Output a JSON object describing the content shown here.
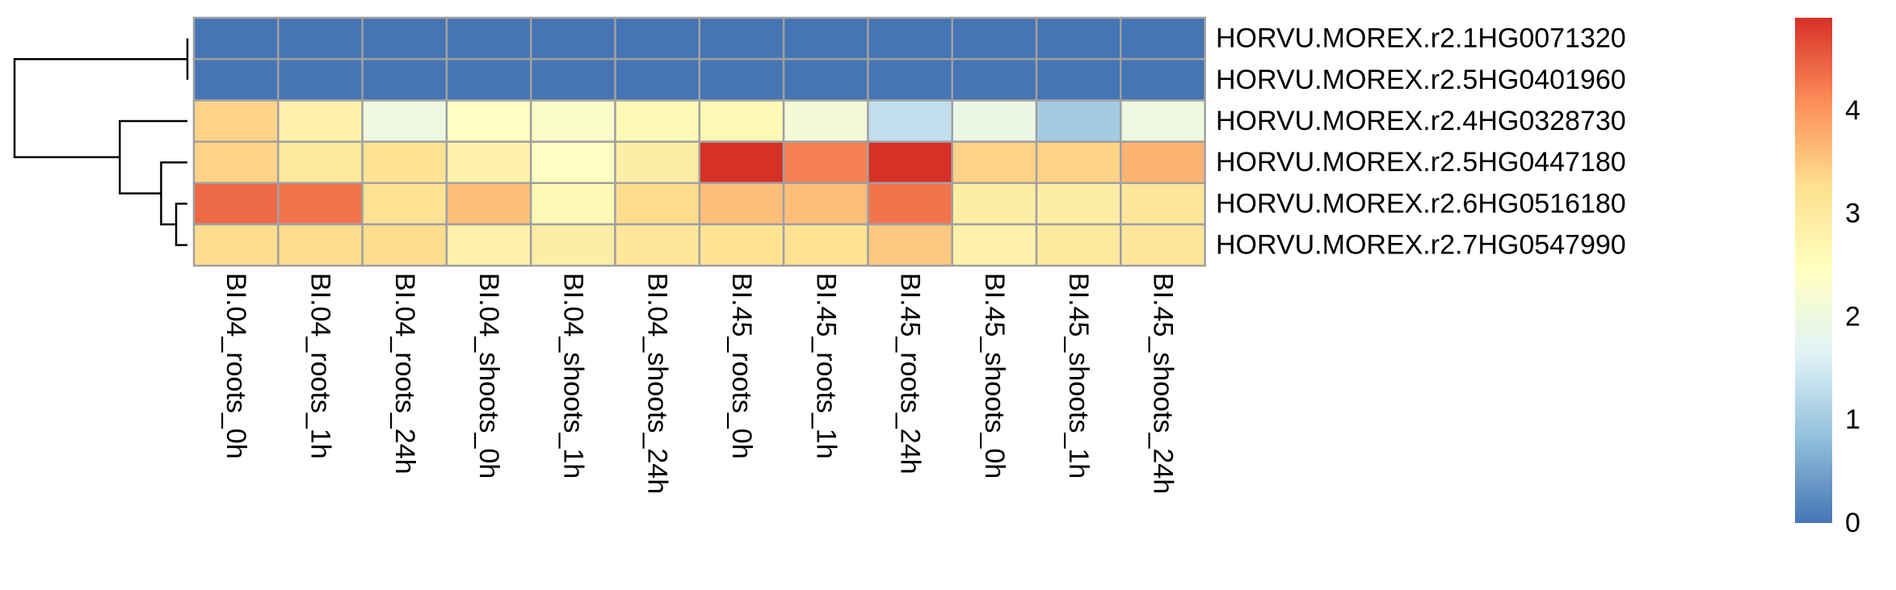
{
  "chart_data": {
    "type": "heatmap",
    "title": "",
    "xlabel": "",
    "ylabel": "",
    "rows": [
      "HORVU.MOREX.r2.1HG0071320",
      "HORVU.MOREX.r2.5HG0401960",
      "HORVU.MOREX.r2.4HG0328730",
      "HORVU.MOREX.r2.5HG0447180",
      "HORVU.MOREX.r2.6HG0516180",
      "HORVU.MOREX.r2.7HG0547990"
    ],
    "columns": [
      "BI.04_roots_0h",
      "BI.04_roots_1h",
      "BI.04_roots_24h",
      "BI.04_shoots_0h",
      "BI.04_shoots_1h",
      "BI.04_shoots_24h",
      "BI.45_roots_0h",
      "BI.45_roots_1h",
      "BI.45_roots_24h",
      "BI.45_shoots_0h",
      "BI.45_shoots_1h",
      "BI.45_shoots_24h"
    ],
    "values": [
      [
        0.0,
        0.0,
        0.0,
        0.0,
        0.0,
        0.0,
        0.0,
        0.0,
        0.0,
        0.0,
        0.0,
        0.0
      ],
      [
        0.0,
        0.0,
        0.0,
        0.0,
        0.0,
        0.0,
        0.0,
        0.0,
        0.0,
        0.0,
        0.0,
        0.0
      ],
      [
        3.4,
        2.8,
        2.0,
        2.4,
        2.3,
        2.6,
        2.6,
        2.1,
        1.3,
        1.9,
        1.0,
        2.0
      ],
      [
        3.4,
        3.0,
        3.2,
        2.8,
        2.4,
        2.9,
        4.9,
        4.2,
        4.9,
        3.4,
        3.4,
        3.7
      ],
      [
        4.4,
        4.3,
        3.2,
        3.6,
        2.6,
        3.3,
        3.6,
        3.6,
        4.3,
        2.9,
        2.9,
        3.1
      ],
      [
        3.3,
        3.3,
        3.3,
        2.8,
        2.9,
        3.1,
        3.2,
        3.2,
        3.5,
        2.8,
        3.0,
        3.1
      ]
    ],
    "value_range": [
      0,
      4.9
    ],
    "colorbar": {
      "ticks": [
        0,
        1,
        2,
        3,
        4
      ],
      "colors": [
        "#4575b4",
        "#91bfdb",
        "#e0f3f8",
        "#ffffbf",
        "#fee090",
        "#fc8d59",
        "#d73027"
      ]
    },
    "dendrogram": {
      "side": "left",
      "merges": [
        {
          "id": "m1",
          "children": [
            "r4",
            "r5"
          ],
          "height": 0.3
        },
        {
          "id": "m2",
          "children": [
            "r3",
            "m1"
          ],
          "height": 0.7
        },
        {
          "id": "m3",
          "children": [
            "r2",
            "m2"
          ],
          "height": 1.8
        },
        {
          "id": "m4",
          "children": [
            "r0",
            "r1"
          ],
          "height": 0.0
        },
        {
          "id": "m5",
          "children": [
            "m4",
            "m3"
          ],
          "height": 4.6
        }
      ]
    },
    "cell_border_color": "#a0a0a0",
    "grid": true,
    "legend": "right"
  }
}
